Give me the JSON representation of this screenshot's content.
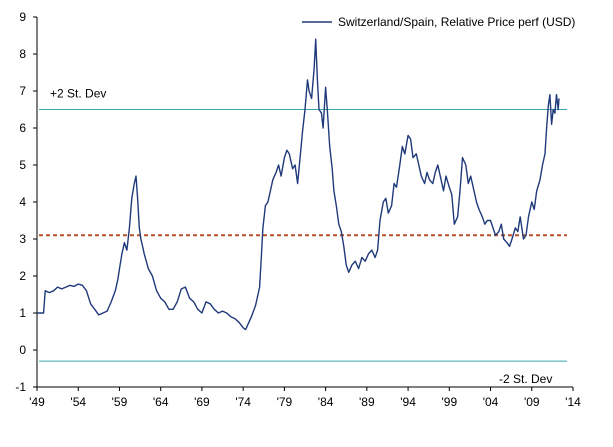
{
  "chart_data": {
    "type": "line",
    "title": "",
    "xlabel": "",
    "ylabel": "",
    "xlim": [
      1949,
      2014
    ],
    "ylim": [
      -1,
      9
    ],
    "x_tick_labels": [
      "'49",
      "'54",
      "'59",
      "'64",
      "'69",
      "'74",
      "'79",
      "'84",
      "'89",
      "'94",
      "'99",
      "'04",
      "'09",
      "'14"
    ],
    "x_tick_values": [
      1949,
      1954,
      1959,
      1964,
      1969,
      1974,
      1979,
      1984,
      1989,
      1994,
      1999,
      2004,
      2009,
      2014
    ],
    "y_ticks": [
      -1,
      0,
      1,
      2,
      3,
      4,
      5,
      6,
      7,
      8,
      9
    ],
    "legend": {
      "label": "Switzerland/Spain, Relative Price perf (USD)",
      "position": "top-right",
      "color": "#1f3a7a"
    },
    "series": [
      {
        "name": "Switzerland/Spain, Relative Price perf (USD)",
        "color": "#1f3a7a",
        "points": [
          [
            1949.0,
            1.0
          ],
          [
            1949.8,
            1.0
          ],
          [
            1950.0,
            1.6
          ],
          [
            1950.5,
            1.55
          ],
          [
            1951.0,
            1.6
          ],
          [
            1951.5,
            1.7
          ],
          [
            1952.0,
            1.65
          ],
          [
            1952.5,
            1.7
          ],
          [
            1953.0,
            1.75
          ],
          [
            1953.5,
            1.72
          ],
          [
            1954.0,
            1.78
          ],
          [
            1954.5,
            1.75
          ],
          [
            1955.0,
            1.6
          ],
          [
            1955.5,
            1.25
          ],
          [
            1956.0,
            1.1
          ],
          [
            1956.5,
            0.95
          ],
          [
            1957.0,
            1.0
          ],
          [
            1957.5,
            1.05
          ],
          [
            1958.0,
            1.3
          ],
          [
            1958.5,
            1.6
          ],
          [
            1958.8,
            1.9
          ],
          [
            1959.0,
            2.2
          ],
          [
            1959.3,
            2.6
          ],
          [
            1959.6,
            2.9
          ],
          [
            1959.9,
            2.7
          ],
          [
            1960.2,
            3.3
          ],
          [
            1960.5,
            4.1
          ],
          [
            1960.8,
            4.5
          ],
          [
            1961.0,
            4.7
          ],
          [
            1961.2,
            4.1
          ],
          [
            1961.4,
            3.3
          ],
          [
            1961.6,
            3.0
          ],
          [
            1961.8,
            2.8
          ],
          [
            1962.0,
            2.6
          ],
          [
            1962.5,
            2.2
          ],
          [
            1963.0,
            2.0
          ],
          [
            1963.5,
            1.6
          ],
          [
            1964.0,
            1.4
          ],
          [
            1964.5,
            1.3
          ],
          [
            1965.0,
            1.1
          ],
          [
            1965.5,
            1.1
          ],
          [
            1966.0,
            1.3
          ],
          [
            1966.5,
            1.65
          ],
          [
            1967.0,
            1.7
          ],
          [
            1967.5,
            1.4
          ],
          [
            1968.0,
            1.3
          ],
          [
            1968.5,
            1.1
          ],
          [
            1969.0,
            1.0
          ],
          [
            1969.5,
            1.3
          ],
          [
            1970.0,
            1.25
          ],
          [
            1970.5,
            1.1
          ],
          [
            1971.0,
            1.0
          ],
          [
            1971.5,
            1.05
          ],
          [
            1972.0,
            1.0
          ],
          [
            1972.5,
            0.9
          ],
          [
            1973.0,
            0.85
          ],
          [
            1973.5,
            0.75
          ],
          [
            1974.0,
            0.6
          ],
          [
            1974.3,
            0.55
          ],
          [
            1974.6,
            0.7
          ],
          [
            1975.0,
            0.9
          ],
          [
            1975.5,
            1.2
          ],
          [
            1975.8,
            1.5
          ],
          [
            1976.0,
            1.7
          ],
          [
            1976.2,
            2.5
          ],
          [
            1976.4,
            3.3
          ],
          [
            1976.7,
            3.9
          ],
          [
            1977.0,
            4.0
          ],
          [
            1977.3,
            4.3
          ],
          [
            1977.6,
            4.6
          ],
          [
            1978.0,
            4.8
          ],
          [
            1978.3,
            5.0
          ],
          [
            1978.6,
            4.7
          ],
          [
            1979.0,
            5.2
          ],
          [
            1979.3,
            5.4
          ],
          [
            1979.6,
            5.3
          ],
          [
            1980.0,
            4.9
          ],
          [
            1980.3,
            5.0
          ],
          [
            1980.6,
            4.5
          ],
          [
            1980.9,
            5.2
          ],
          [
            1981.2,
            5.9
          ],
          [
            1981.5,
            6.5
          ],
          [
            1981.8,
            7.3
          ],
          [
            1982.0,
            7.0
          ],
          [
            1982.3,
            6.8
          ],
          [
            1982.6,
            7.6
          ],
          [
            1982.8,
            8.4
          ],
          [
            1983.0,
            7.3
          ],
          [
            1983.2,
            6.5
          ],
          [
            1983.5,
            6.4
          ],
          [
            1983.7,
            6.0
          ],
          [
            1984.0,
            7.1
          ],
          [
            1984.2,
            6.5
          ],
          [
            1984.5,
            5.5
          ],
          [
            1984.8,
            4.9
          ],
          [
            1985.0,
            4.3
          ],
          [
            1985.3,
            3.9
          ],
          [
            1985.6,
            3.4
          ],
          [
            1985.9,
            3.2
          ],
          [
            1986.2,
            2.8
          ],
          [
            1986.5,
            2.3
          ],
          [
            1986.8,
            2.1
          ],
          [
            1987.2,
            2.3
          ],
          [
            1987.6,
            2.4
          ],
          [
            1988.0,
            2.2
          ],
          [
            1988.4,
            2.5
          ],
          [
            1988.8,
            2.4
          ],
          [
            1989.2,
            2.6
          ],
          [
            1989.6,
            2.7
          ],
          [
            1990.0,
            2.5
          ],
          [
            1990.3,
            2.7
          ],
          [
            1990.6,
            3.5
          ],
          [
            1991.0,
            4.0
          ],
          [
            1991.3,
            4.1
          ],
          [
            1991.6,
            3.7
          ],
          [
            1992.0,
            3.9
          ],
          [
            1992.3,
            4.5
          ],
          [
            1992.6,
            4.4
          ],
          [
            1993.0,
            5.0
          ],
          [
            1993.3,
            5.5
          ],
          [
            1993.6,
            5.3
          ],
          [
            1994.0,
            5.8
          ],
          [
            1994.3,
            5.7
          ],
          [
            1994.6,
            5.2
          ],
          [
            1995.0,
            5.3
          ],
          [
            1995.3,
            5.0
          ],
          [
            1995.6,
            4.7
          ],
          [
            1996.0,
            4.5
          ],
          [
            1996.3,
            4.8
          ],
          [
            1996.6,
            4.6
          ],
          [
            1997.0,
            4.5
          ],
          [
            1997.3,
            4.8
          ],
          [
            1997.6,
            5.0
          ],
          [
            1998.0,
            4.6
          ],
          [
            1998.3,
            4.3
          ],
          [
            1998.6,
            4.7
          ],
          [
            1999.0,
            4.4
          ],
          [
            1999.3,
            4.2
          ],
          [
            1999.6,
            3.4
          ],
          [
            2000.0,
            3.6
          ],
          [
            2000.3,
            4.3
          ],
          [
            2000.6,
            5.2
          ],
          [
            2001.0,
            5.0
          ],
          [
            2001.3,
            4.5
          ],
          [
            2001.6,
            4.7
          ],
          [
            2002.0,
            4.3
          ],
          [
            2002.3,
            4.0
          ],
          [
            2002.6,
            3.8
          ],
          [
            2003.0,
            3.6
          ],
          [
            2003.3,
            3.4
          ],
          [
            2003.6,
            3.5
          ],
          [
            2004.0,
            3.5
          ],
          [
            2004.3,
            3.3
          ],
          [
            2004.6,
            3.1
          ],
          [
            2005.0,
            3.2
          ],
          [
            2005.3,
            3.4
          ],
          [
            2005.6,
            3.0
          ],
          [
            2006.0,
            2.9
          ],
          [
            2006.3,
            2.8
          ],
          [
            2006.6,
            3.0
          ],
          [
            2007.0,
            3.3
          ],
          [
            2007.3,
            3.2
          ],
          [
            2007.6,
            3.6
          ],
          [
            2008.0,
            3.0
          ],
          [
            2008.3,
            3.1
          ],
          [
            2008.6,
            3.6
          ],
          [
            2009.0,
            4.0
          ],
          [
            2009.3,
            3.8
          ],
          [
            2009.6,
            4.3
          ],
          [
            2010.0,
            4.6
          ],
          [
            2010.3,
            5.0
          ],
          [
            2010.6,
            5.3
          ],
          [
            2010.8,
            6.0
          ],
          [
            2011.0,
            6.6
          ],
          [
            2011.2,
            6.9
          ],
          [
            2011.4,
            6.1
          ],
          [
            2011.6,
            6.5
          ],
          [
            2011.8,
            6.4
          ],
          [
            2012.0,
            6.9
          ],
          [
            2012.2,
            6.5
          ],
          [
            2012.3,
            6.8
          ]
        ]
      }
    ],
    "reference_lines": [
      {
        "name": "+2 St. Dev",
        "value": 6.5,
        "style": "solid",
        "color": "#3aa6b0"
      },
      {
        "name": "mean",
        "value": 3.1,
        "style": "dashed",
        "color": "#b8502a"
      },
      {
        "name": "-2 St. Dev",
        "value": -0.3,
        "style": "solid",
        "color": "#3aa6b0"
      }
    ],
    "annotations": [
      {
        "text": "+2 St. Dev",
        "near": "upper reference line, left"
      },
      {
        "text": "-2 St. Dev",
        "near": "lower reference line, right"
      }
    ]
  }
}
